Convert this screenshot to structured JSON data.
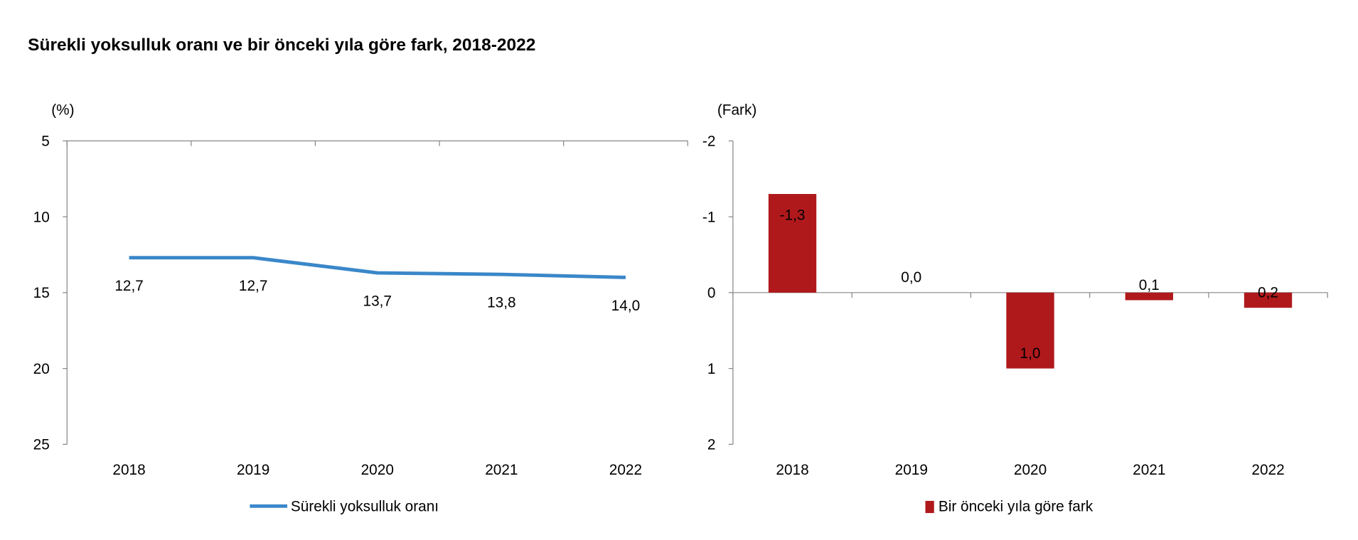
{
  "title": "Sürekli yoksulluk oranı ve bir önceki yıla göre fark, 2018-2022",
  "colors": {
    "line": "#3a87c9",
    "bar": "#b0191c",
    "axis": "#868686"
  },
  "chart_data": [
    {
      "type": "line",
      "ylabel": "(%)",
      "categories": [
        "2018",
        "2019",
        "2020",
        "2021",
        "2022"
      ],
      "series": [
        {
          "name": "Sürekli yoksulluk oranı",
          "values": [
            12.7,
            12.7,
            13.7,
            13.8,
            14.0
          ]
        }
      ],
      "data_labels": [
        "12,7",
        "12,7",
        "13,7",
        "13,8",
        "14,0"
      ],
      "ylim": [
        5,
        25
      ],
      "yticks": [
        "5",
        "10",
        "15",
        "20",
        "25"
      ],
      "yticks_values": [
        5,
        10,
        15,
        20,
        25
      ],
      "legend": "bottom",
      "grid": false
    },
    {
      "type": "bar",
      "ylabel": "(Fark)",
      "categories": [
        "2018",
        "2019",
        "2020",
        "2021",
        "2022"
      ],
      "series": [
        {
          "name": "Bir önceki yıla göre fark",
          "values": [
            -1.3,
            0.0,
            1.0,
            0.1,
            0.2
          ]
        }
      ],
      "data_labels": [
        "-1,3",
        "0,0",
        "1,0",
        "0,1",
        "0,2"
      ],
      "ylim": [
        -2,
        2
      ],
      "yticks": [
        "-2",
        "-1",
        "0",
        "1",
        "2"
      ],
      "yticks_values": [
        -2,
        -1,
        0,
        1,
        2
      ],
      "legend": "bottom",
      "grid": false
    }
  ]
}
